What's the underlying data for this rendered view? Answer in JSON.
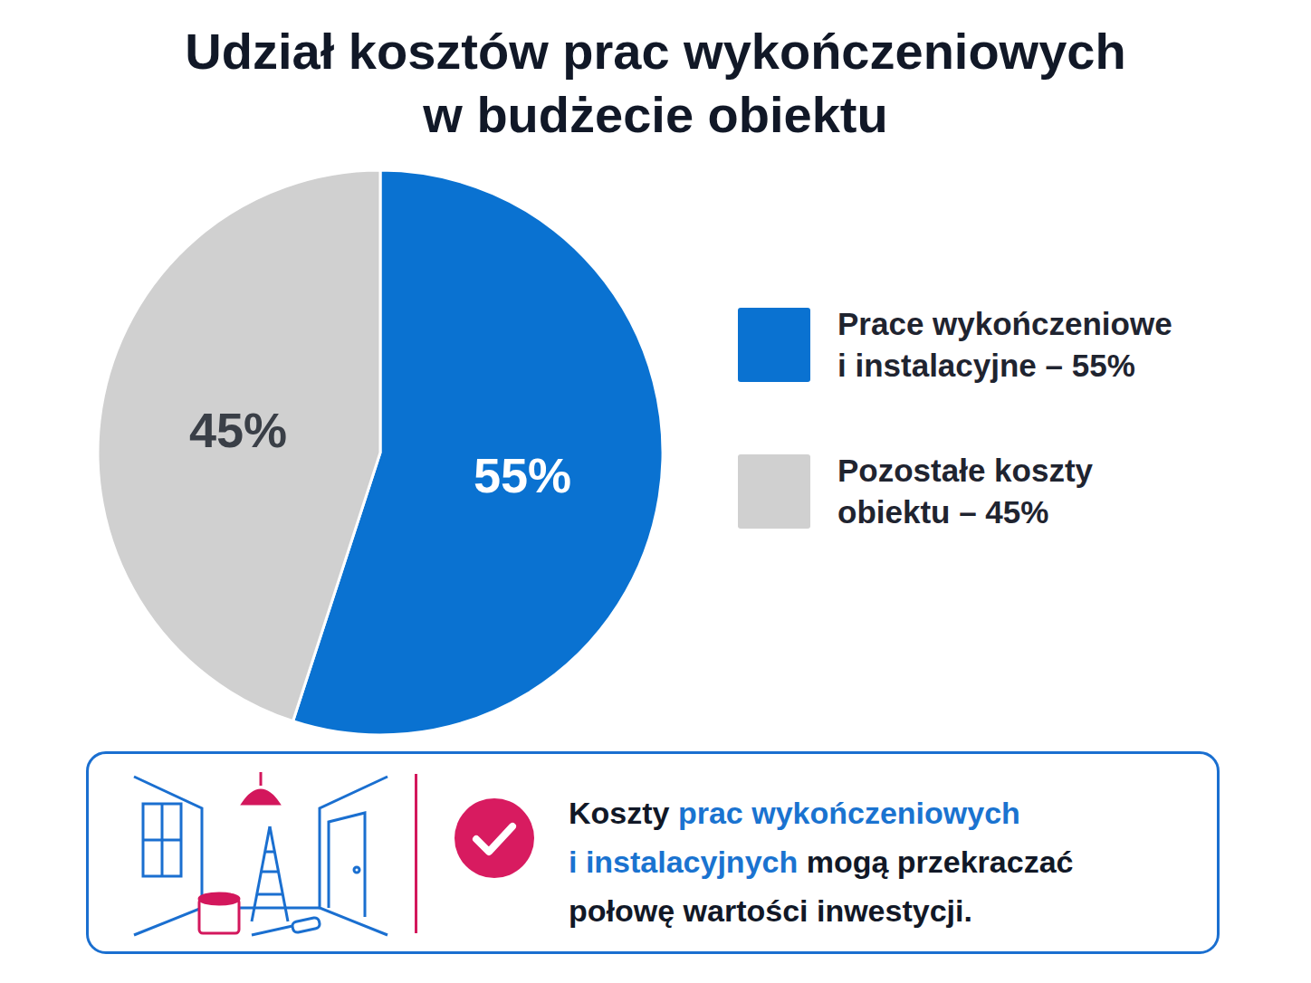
{
  "chart_data": {
    "type": "pie",
    "title": "Udział kosztów prac wykończeniowych\nw budżecie obiektu",
    "categories": [
      "Prace wykończeniowe\ni instalacyjne – 55%",
      "Pozostałe koszty\nobiektu – 45%"
    ],
    "values": [
      55,
      45
    ],
    "value_labels": [
      "55%",
      "45%"
    ],
    "colors": [
      "#0a72d1",
      "#d0d0d0"
    ],
    "data_labels": true,
    "legend": "right",
    "annotation": [
      [
        {
          "text": "Koszty "
        },
        {
          "text": "prac wykończeniowych",
          "color": "#1a73d0"
        }
      ],
      [
        {
          "text": "i instalacyjnych",
          "color": "#1a73d0"
        },
        {
          "text": " mogą przekraczać"
        }
      ],
      [
        {
          "text": "połowę wartości inwestycji."
        }
      ]
    ]
  }
}
